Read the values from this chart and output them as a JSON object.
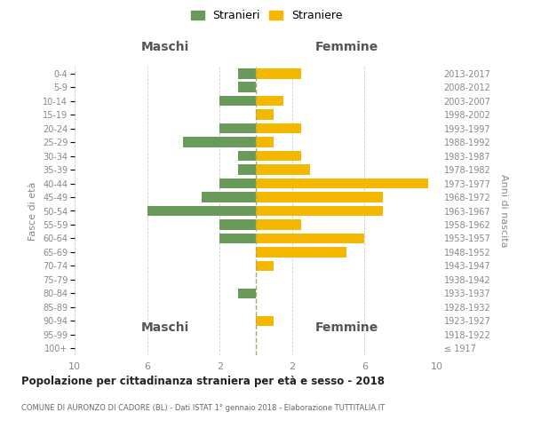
{
  "age_groups": [
    "100+",
    "95-99",
    "90-94",
    "85-89",
    "80-84",
    "75-79",
    "70-74",
    "65-69",
    "60-64",
    "55-59",
    "50-54",
    "45-49",
    "40-44",
    "35-39",
    "30-34",
    "25-29",
    "20-24",
    "15-19",
    "10-14",
    "5-9",
    "0-4"
  ],
  "birth_years": [
    "≤ 1917",
    "1918-1922",
    "1923-1927",
    "1928-1932",
    "1933-1937",
    "1938-1942",
    "1943-1947",
    "1948-1952",
    "1953-1957",
    "1958-1962",
    "1963-1967",
    "1968-1972",
    "1973-1977",
    "1978-1982",
    "1983-1987",
    "1988-1992",
    "1993-1997",
    "1998-2002",
    "2003-2007",
    "2008-2012",
    "2013-2017"
  ],
  "maschi": [
    0,
    0,
    0,
    0,
    1,
    0,
    0,
    0,
    2,
    2,
    6,
    3,
    2,
    1,
    1,
    4,
    2,
    0,
    2,
    1,
    1
  ],
  "femmine": [
    0,
    0,
    1,
    0,
    0,
    0,
    1,
    5,
    6,
    2.5,
    7,
    7,
    9.5,
    3,
    2.5,
    1,
    2.5,
    1,
    1.5,
    0,
    2.5
  ],
  "color_maschi": "#6a9a5b",
  "color_femmine": "#f5b800",
  "title": "Popolazione per cittadinanza straniera per età e sesso - 2018",
  "subtitle": "COMUNE DI AURONZO DI CADORE (BL) - Dati ISTAT 1° gennaio 2018 - Elaborazione TUTTITALIA.IT",
  "ylabel_left": "Fasce di età",
  "ylabel_right": "Anni di nascita",
  "header_left": "Maschi",
  "header_right": "Femmine",
  "legend_maschi": "Stranieri",
  "legend_femmine": "Straniere",
  "xlim": 10,
  "xtick_positions": [
    -10,
    -6,
    -2,
    2,
    6,
    10
  ],
  "xtick_labels": [
    "10",
    "6",
    "2",
    "2",
    "6",
    "10"
  ],
  "background_color": "#ffffff",
  "grid_color": "#cccccc",
  "center_line_color": "#aaaa66"
}
